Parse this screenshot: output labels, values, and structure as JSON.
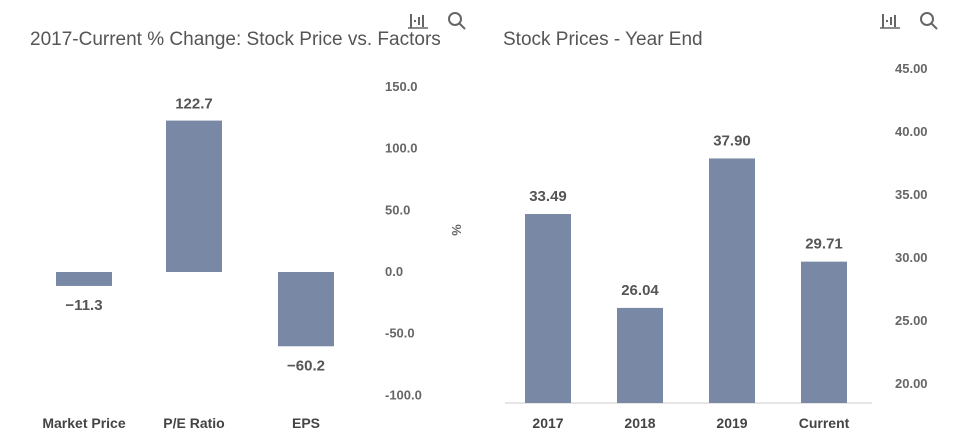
{
  "colors": {
    "bar": "#7888a5",
    "text": "#555555"
  },
  "toolbar_icons": [
    "bar-chart-icon",
    "search-icon"
  ],
  "chart_data": [
    {
      "type": "bar",
      "title": "2017-Current % Change: Stock Price vs. Factors",
      "categories": [
        "Market Price",
        "P/E Ratio",
        "EPS"
      ],
      "values": [
        -11.3,
        122.7,
        -60.2
      ],
      "data_labels": [
        "-11.3",
        "122.7",
        "-60.2"
      ],
      "ylabel": "%",
      "ylim": [
        -100,
        150
      ],
      "yticks": [
        "150.0",
        "100.0",
        "50.0",
        "0.0",
        "-50.0",
        "-100.0"
      ],
      "ytick_values": [
        150,
        100,
        50,
        0,
        -50,
        -100
      ],
      "y_axis_position": "right",
      "grid": false
    },
    {
      "type": "bar",
      "title": "Stock Prices - Year End",
      "categories": [
        "2017",
        "2018",
        "2019",
        "Current"
      ],
      "values": [
        33.49,
        26.04,
        37.9,
        29.71
      ],
      "data_labels": [
        "33.49",
        "26.04",
        "37.90",
        "29.71"
      ],
      "ylabel": "",
      "ylim": [
        18.6,
        45
      ],
      "yticks": [
        "45.00",
        "40.00",
        "35.00",
        "30.00",
        "25.00",
        "20.00"
      ],
      "ytick_values": [
        45,
        40,
        35,
        30,
        25,
        20
      ],
      "y_axis_position": "right",
      "grid": false
    }
  ]
}
